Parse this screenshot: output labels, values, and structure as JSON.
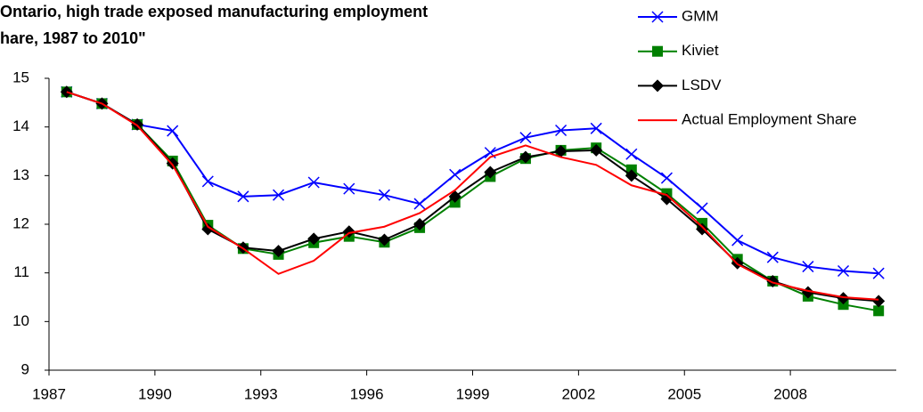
{
  "chart_data": {
    "type": "line",
    "title": [
      "Ontario, high trade exposed manufacturing employment",
      "hare, 1987 to 2010\""
    ],
    "categories": [
      "1987",
      null,
      null,
      "1990",
      null,
      null,
      "1993",
      null,
      null,
      "1996",
      null,
      null,
      "1999",
      null,
      null,
      "2002",
      null,
      null,
      "2005",
      null,
      null,
      "2008",
      null,
      null
    ],
    "ylim": [
      9,
      15
    ],
    "yticks": [
      9,
      10,
      11,
      12,
      13,
      14,
      15
    ],
    "grid": false,
    "legend": "top-right",
    "series": [
      {
        "name": "GMM",
        "color": "#0000ff",
        "marker": "x",
        "values": [
          14.72,
          14.48,
          14.05,
          13.92,
          12.88,
          12.57,
          12.6,
          12.86,
          12.73,
          12.6,
          12.42,
          13.02,
          13.47,
          13.78,
          13.93,
          13.97,
          13.44,
          12.95,
          12.33,
          11.67,
          11.32,
          11.13,
          11.04,
          10.99
        ]
      },
      {
        "name": "Kiviet",
        "color": "#008000",
        "marker": "square",
        "values": [
          14.72,
          14.48,
          14.05,
          13.3,
          11.98,
          11.5,
          11.38,
          11.62,
          11.75,
          11.63,
          11.93,
          12.45,
          12.98,
          13.35,
          13.52,
          13.57,
          13.12,
          12.63,
          12.02,
          11.28,
          10.83,
          10.52,
          10.35,
          10.22
        ]
      },
      {
        "name": "LSDV",
        "color": "#000000",
        "marker": "diamond",
        "values": [
          14.72,
          14.48,
          14.05,
          13.25,
          11.9,
          11.52,
          11.45,
          11.7,
          11.85,
          11.68,
          12.0,
          12.57,
          13.07,
          13.38,
          13.5,
          13.52,
          13.0,
          12.52,
          11.9,
          11.2,
          10.83,
          10.6,
          10.48,
          10.42
        ]
      },
      {
        "name": "Actual Employment Share",
        "color": "#ff0000",
        "marker": "none",
        "values": [
          14.72,
          14.48,
          14.03,
          13.22,
          11.95,
          11.5,
          10.98,
          11.25,
          11.82,
          11.95,
          12.23,
          12.7,
          13.38,
          13.62,
          13.38,
          13.22,
          12.8,
          12.6,
          11.95,
          11.18,
          10.8,
          10.63,
          10.5,
          10.45
        ]
      }
    ]
  }
}
